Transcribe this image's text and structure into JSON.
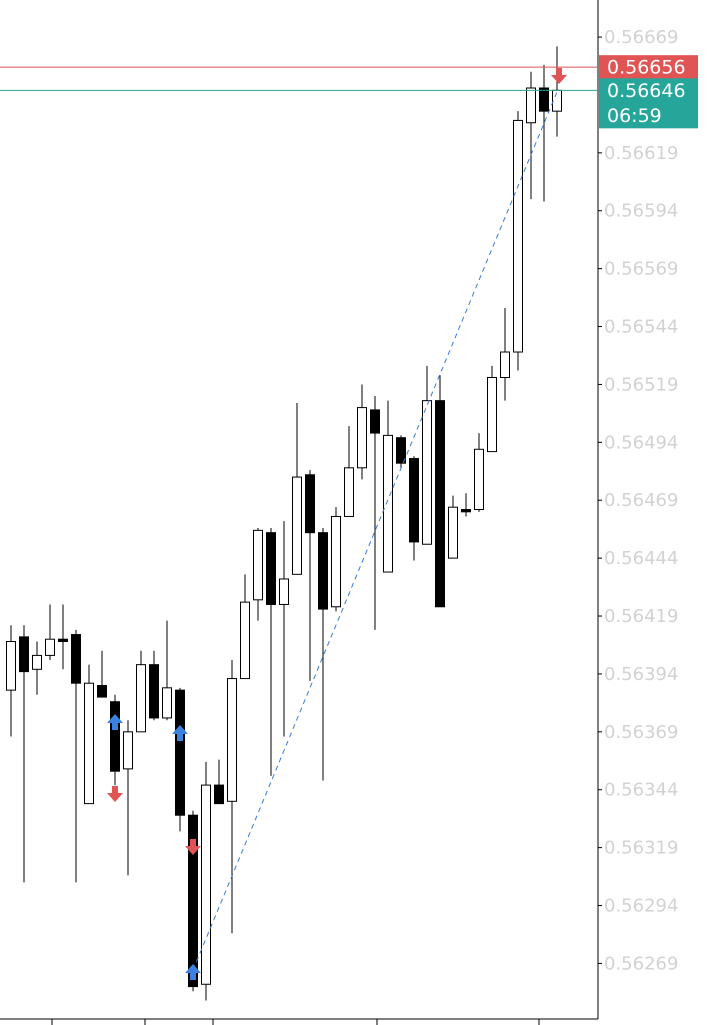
{
  "chart_data": {
    "type": "candlestick",
    "open": [
      0.56387,
      0.5641,
      0.56396,
      0.56402,
      0.56409,
      0.56411,
      0.56338,
      0.56389,
      0.56382,
      0.56353,
      0.56369,
      0.56398,
      0.56375,
      0.56387,
      0.56333,
      0.5626,
      0.56346,
      0.56339,
      0.56392,
      0.56426,
      0.56455,
      0.56424,
      0.56437,
      0.5648,
      0.56455,
      0.56423,
      0.56462,
      0.56483,
      0.56508,
      0.56438,
      0.56496,
      0.56487,
      0.5645,
      0.56512,
      0.56444,
      0.56465,
      0.56465,
      0.5649,
      0.56522,
      0.56533,
      0.56632,
      0.56647,
      0.56637
    ],
    "high": [
      0.56415,
      0.56415,
      0.56408,
      0.56424,
      0.56424,
      0.56413,
      0.56398,
      0.56404,
      0.56385,
      0.56374,
      0.56404,
      0.56404,
      0.56417,
      0.56388,
      0.56335,
      0.56356,
      0.56357,
      0.564,
      0.56437,
      0.56457,
      0.56457,
      0.5646,
      0.56511,
      0.56482,
      0.56457,
      0.56466,
      0.56501,
      0.56519,
      0.56514,
      0.56512,
      0.56497,
      0.56488,
      0.56527,
      0.56523,
      0.56471,
      0.56472,
      0.56498,
      0.56527,
      0.56552,
      0.56637,
      0.56654,
      0.56657,
      0.56665
    ],
    "low": [
      0.56367,
      0.56304,
      0.56385,
      0.564,
      0.56396,
      0.56304,
      0.56338,
      0.56384,
      0.56346,
      0.56307,
      0.56369,
      0.56374,
      0.56374,
      0.56326,
      0.56257,
      0.56253,
      0.56338,
      0.56282,
      0.56392,
      0.56417,
      0.5635,
      0.56367,
      0.56437,
      0.56391,
      0.56348,
      0.56421,
      0.56462,
      0.56478,
      0.56413,
      0.56438,
      0.56483,
      0.56443,
      0.5645,
      0.56423,
      0.56444,
      0.56462,
      0.56464,
      0.5649,
      0.56512,
      0.56525,
      0.56599,
      0.56598,
      0.56626
    ],
    "close": [
      0.56408,
      0.56395,
      0.56402,
      0.56409,
      0.56408,
      0.5639,
      0.5639,
      0.56384,
      0.56352,
      0.56369,
      0.56398,
      0.56375,
      0.56388,
      0.56333,
      0.56259,
      0.56346,
      0.56338,
      0.56392,
      0.56425,
      0.56456,
      0.56424,
      0.56435,
      0.56479,
      0.56455,
      0.56422,
      0.56462,
      0.56483,
      0.56509,
      0.56498,
      0.56497,
      0.56485,
      0.56451,
      0.56512,
      0.56423,
      0.56466,
      0.56464,
      0.56491,
      0.56522,
      0.56533,
      0.56633,
      0.56647,
      0.56637,
      0.56646
    ],
    "ylim": [
      0.56245,
      0.56685
    ],
    "yticks": [
      0.56669,
      0.56619,
      0.56594,
      0.56569,
      0.56544,
      0.56519,
      0.56494,
      0.56469,
      0.56444,
      0.56419,
      0.56394,
      0.56369,
      0.56344,
      0.56319,
      0.56294,
      0.56269
    ],
    "levels": [
      {
        "value": 0.56656,
        "color": "#e05454"
      },
      {
        "value": 0.56646,
        "color": "#26a69a"
      }
    ],
    "countdown": "06:59",
    "up_color": "#ffffff",
    "down_color": "#000000"
  }
}
